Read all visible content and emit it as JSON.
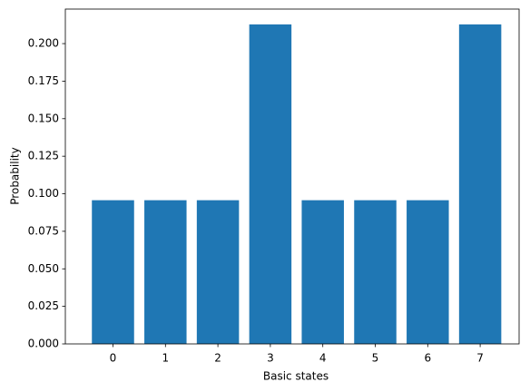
{
  "chart_data": {
    "type": "bar",
    "x_label": "Basic states",
    "y_label": "Probability",
    "categories": [
      "0",
      "1",
      "2",
      "3",
      "4",
      "5",
      "6",
      "7"
    ],
    "values": [
      0.0957,
      0.0957,
      0.0957,
      0.2128,
      0.0957,
      0.0957,
      0.0957,
      0.2128
    ],
    "color": "#1f77b4",
    "ylim": [
      0,
      0.223
    ],
    "yticks": [
      {
        "value": 0,
        "label": "0.000"
      },
      {
        "value": 0.025,
        "label": "0.025"
      },
      {
        "value": 0.05,
        "label": "0.050"
      },
      {
        "value": 0.075,
        "label": "0.075"
      },
      {
        "value": 0.1,
        "label": "0.100"
      },
      {
        "value": 0.125,
        "label": "0.125"
      },
      {
        "value": 0.15,
        "label": "0.150"
      },
      {
        "value": 0.175,
        "label": "0.175"
      },
      {
        "value": 0.2,
        "label": "0.200"
      }
    ],
    "grid": false
  }
}
